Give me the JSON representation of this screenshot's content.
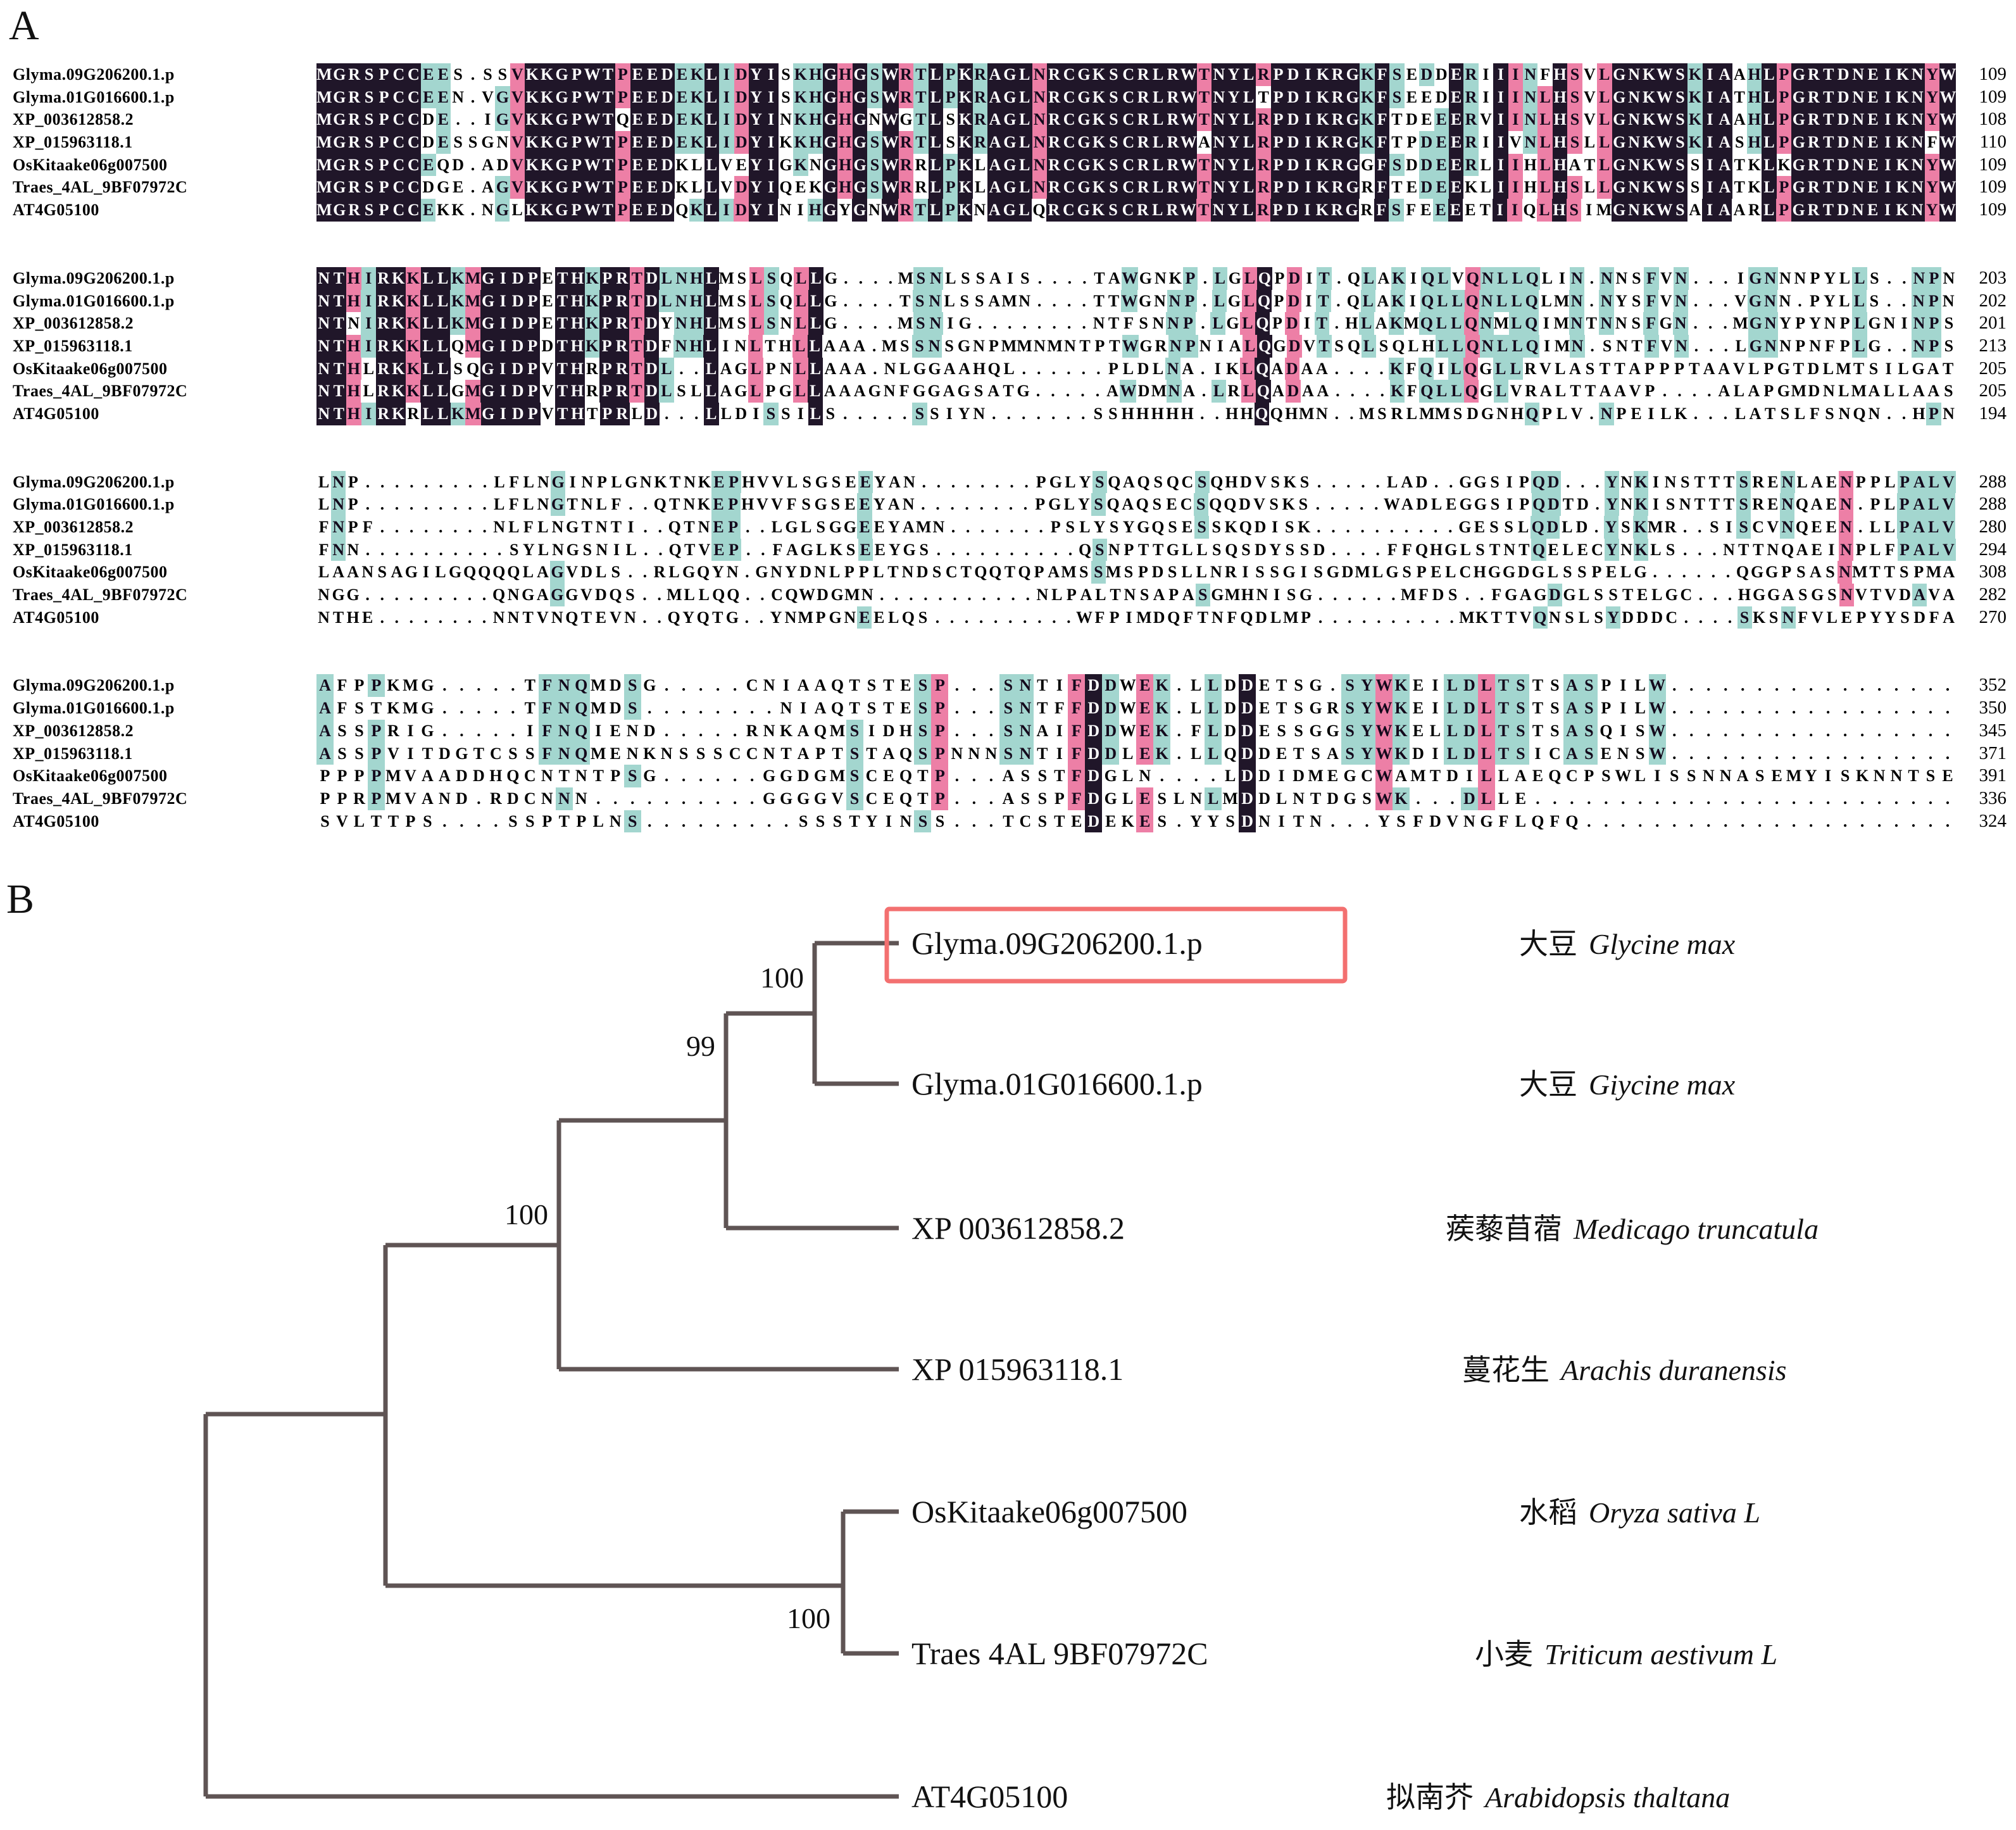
{
  "panels": {
    "a": "A",
    "b": "B"
  },
  "alignment": {
    "row_names": [
      "Glyma.09G206200.1.p",
      "Glyma.01G016600.1.p",
      "XP_003612858.2",
      "XP_015963118.1",
      "OsKitaake06g007500",
      "Traes_4AL_9BF07972C",
      "AT4G05100"
    ],
    "colors": {
      "identical_bg": "#201629",
      "high_similarity_bg": "#ed7fa6",
      "low_similarity_bg": "#a3d6cf"
    },
    "blocks": [
      {
        "ends": [
          109,
          109,
          108,
          110,
          109,
          109,
          109
        ],
        "seqs": [
          "MGRSPCCEES.SSVKKGPWTPEEDEKLIDYISKHGHGSWRTLPKRAGLNRCGKSCRLRWTNYLRPDIKRGKFSEDDERIIINFHSVLGNKWSKIAAHLPGRTDNEIKNYW",
          "MGRSPCCEEN.VGVKKGPWTPEEDEKLIDYISKHGHGSWRTLPKRAGLNRCGKSCRLRWTNYLTPDIKRGKFSEEDERIIINLHSVLGNKWSKIATHLPGRTDNEIKNYW",
          "MGRSPCCDE..IGVKKGPWTQEEDEKLIDYINKHGHGNWGTLSKRAGLNRCGKSCRLRWTNYLRPDIKRGKFTDEEERVIINLHSVLGNKWSKIAAHLPGRTDNEIKNYW",
          "MGRSPCCDESSGNVKKGPWTPEEDEKLIDYIKKHGHGSWRTLSKRAGLNRCGKSCRLRWANYLRPDIKRGKFTPDEERIIVNLHSLLGNKWSKIASHLPGRTDNEIKNFW",
          "MGRSPCCEQD.ADVKKGPWTPEEDKLLVEYIGKNGHGSWRRLPKLAGLNRCGKSCRLRWTNYLRPDIKRGGFSDDEERLIIHLHATLGNKWSSIATKLKGRTDNEIKNYW",
          "MGRSPCCDGE.AGVKKGPWTPEEDKLLVDYIQEKGHGSWRRLPKLAGLNRCGKSCRLRWTNYLRPDIKRGRFTEDEEKLIIHLHSLLGNKWSSIATKLPGRTDNEIKNYW",
          "MGRSPCCEKK.NGLKKGPWTPEEDQKLIDYINIHGYGNWRTLPKNAGLQRCGKSCRLRWTNYLRPDIKRGRFSFEEEETIIQLHSIMGNKWSAIAARLPGRTDNEIKNYW"
        ]
      },
      {
        "ends": [
          203,
          202,
          201,
          213,
          205,
          205,
          194
        ],
        "seqs": [
          "NTHIRKKLLKMGIDPETHKPRTDLNHLMSLSQLLG....MSNLSSAIS....TAWGNKP.LGLQPDIT.QLAKIQLVQNLLQLIN.NNSFVN...IGNNNPYLLS..NPN",
          "NTHIRKKLLKMGIDPETHKPRTDLNHLMSLSQLLG....TSNLSSAMN....TTWGNNP.LGLQPDIT.QLAKIQLLQNLLQLMN.NYSFVN...VGNN.PYLLS..NPN",
          "NTNIRKKLLKMGIDPETHKPRTDYNHLMSLSNLLG....MSNIG........NTFSNNP.LGLQPDIT.HLAKMQLLQNMLQIMNTNNSFGN...MGNYPYNPLGNINPS",
          "NTHIRKKLLQMGIDPDTHKPRTDFNHLINLTHLLAAA.MSSNSGNPMMNMNTPTWGRNPNIALQGDVTSQLSQLHLLQNLLQIMN.SNTFVN...LGNNPNFPLG..NPS",
          "NTHLRKKLLSQGIDPVTHRPRTDL..LAGLPNLLAAA.NLGGAAHQL......PLDLNA.IKLQADAA....KFQILQGLLRVLASTTAPPPTAAVLPGTDLMTSILGAT",
          "NTHLRKKLLGMGIDPVTHRPRTDLSLLAGLPGLLAAAGNFGGAGSATG.....AWDMNA.LRLQADAA....KFQLLQGLVRALTTAAVP....ALAPGMDNLMALLAAS",
          "NTHIRKRLLKMGIDPVTHTPRLD...LLDISSILS.....SSIYN.......SSHHHHH..HHQQHMN..MSRLMMSDGNHQPLV.NPEILK...LATSLFSNQN..HPN"
        ]
      },
      {
        "ends": [
          288,
          288,
          280,
          294,
          308,
          282,
          270
        ],
        "seqs": [
          "LNP.........LFLNGINPLGNKTNKEPHVVLSGSEEYAN........PGLYSQAQSQCSQHDVSKS.....LAD..GGSIPQD...YNKINSTTTSRENLAENPPLPALV",
          "LNP.........LFLNGTNLF..QTNKEPHVVFSGSEEYAN........PGLYSQAQSECSQQDVSKS.....WADLEGGSIPQDTD.YNKISNTTTSRENQAEN.PLPALV",
          "FNPF........NLFLNGTNTI..QTNEP..LGLSGGEEYAMN.......PSLYSYGQSESSKQDISK..........GESSLQDLD.YSKMR..SISCVNQEEN.LLPALV",
          "FNN..........SYLNGSNIL..QTVEP..FAGLKSEEYGS..........QSNPTTGLLSQSDYSSD....FFQHGLSTNTQELECYNKLS...NTTNQAEINPLFPALV",
          "LAANSAGILGQQQQLAGVDLS..RLGQYN.GNYDNLPPLTNDSCTQQTQPAMSSMSPDSLLNRISSGISGDMLGSPELCHGGDGLSSPELG......QGGPSASNMTTSPMA",
          "NGG.........QNGAGGVDQS..MLLQQ..CQWDGMN...........NLPALTNSAPASGMHNISG......MFDS..FGAGDGLSSTELGC...HGGASGSNVTVDAVA",
          "NTHE........NNTVNQTEVN..QYQTG..YNMPGNEELQS..........WFPIMDQFTNFQDLMP..........MKTTVQNSLSYDDDC....SKSNFVLEPYYSDFA"
        ]
      },
      {
        "ends": [
          352,
          350,
          345,
          371,
          391,
          336,
          324
        ],
        "seqs": [
          "AFPPKMG.....TFNQMDSG.....CNIAAQTSTESP...SNTIFDDWEK.LLDDETSG.SYWKEILDLTSTSASPILW.................",
          "AFSTKMG.....TFNQMDS........NIAQTSTESP...SNTFFDDWEK.LLDDETSGRSYWKEILDLTSTSASPILW.................",
          "ASSPRIG.....IFNQIEND.....RNKAQMSIDHSP...SNAIFDDWEK.FLDDESSGGSYWKELLDLTSTSASQISW.................",
          "ASSPVITDGTCSSFNQMENKNSSSCCNTAPTSTAQSPNNNSNTIFDDLEK.LLQDDETSASYWKDILDLTSICASENSW.................",
          "PPPPMVAADDHQCNTNTPSG......GGDGMSCEQTP...ASSTFDGLN....LDDIDMEGCWAMTDILLAEQCPSWLISSNNASEMYISKNNTSE",
          "PPRPMVAND.RDCNNN..........GGGGVSCEQTP...ASSPFDGLESLNLMDDLNTDGSWK...DLLE.........................",
          "SVLTTPS....SSPTPLNS.........SSSTYINSS...TCSTEDEKES.YYSDNITN...YSFDVNGFLQFQ......................"
        ]
      }
    ]
  },
  "tree": {
    "line_color": "#5f5454",
    "highlight_color": "#f37070",
    "bootstraps": [
      {
        "value": "100"
      },
      {
        "value": "99"
      },
      {
        "value": "100"
      },
      {
        "value": "100"
      }
    ],
    "leaves": [
      {
        "id": "Glyma.09G206200.1.p",
        "zh": "大豆",
        "latin": "Glycine max",
        "boxed": true
      },
      {
        "id": "Glyma.01G016600.1.p",
        "zh": "大豆",
        "latin": "Giycine max",
        "boxed": false
      },
      {
        "id": "XP 003612858.2",
        "zh": "蒺藜苜蓿",
        "latin": "Medicago truncatula",
        "boxed": false
      },
      {
        "id": "XP 015963118.1",
        "zh": "蔓花生",
        "latin": "Arachis duranensis",
        "boxed": false
      },
      {
        "id": "OsKitaake06g007500",
        "zh": "水稻",
        "latin": "Oryza sativa L",
        "boxed": false
      },
      {
        "id": "Traes 4AL 9BF07972C",
        "zh": "小麦",
        "latin": "Triticum aestivum L",
        "boxed": false
      },
      {
        "id": "AT4G05100",
        "zh": "拟南芥",
        "latin": "Arabidopsis thaltana",
        "boxed": false
      }
    ]
  }
}
